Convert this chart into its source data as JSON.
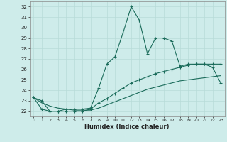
{
  "xlabel": "Humidex (Indice chaleur)",
  "background_color": "#ceecea",
  "grid_color": "#b8dbd8",
  "line_color": "#1a6b5a",
  "x": [
    0,
    1,
    2,
    3,
    4,
    5,
    6,
    7,
    8,
    9,
    10,
    11,
    12,
    13,
    14,
    15,
    16,
    17,
    18,
    19,
    20,
    21,
    22,
    23
  ],
  "y_main": [
    23.3,
    23.0,
    22.0,
    22.0,
    22.2,
    22.2,
    22.2,
    22.3,
    24.2,
    26.5,
    27.2,
    29.5,
    32.0,
    30.7,
    27.5,
    29.0,
    29.0,
    28.7,
    26.3,
    26.5,
    26.5,
    26.5,
    26.2,
    24.7
  ],
  "y_lower": [
    23.3,
    22.2,
    22.0,
    22.0,
    22.0,
    22.0,
    22.0,
    22.2,
    22.8,
    23.2,
    23.7,
    24.2,
    24.7,
    25.0,
    25.3,
    25.6,
    25.8,
    26.0,
    26.2,
    26.4,
    26.5,
    26.5,
    26.5,
    26.5
  ],
  "y_flat": [
    23.3,
    22.8,
    22.5,
    22.3,
    22.2,
    22.1,
    22.1,
    22.1,
    22.3,
    22.6,
    22.9,
    23.2,
    23.5,
    23.8,
    24.1,
    24.3,
    24.5,
    24.7,
    24.9,
    25.0,
    25.1,
    25.2,
    25.3,
    25.4
  ],
  "ylim": [
    21.5,
    32.5
  ],
  "xlim": [
    -0.5,
    23.5
  ],
  "yticks": [
    22,
    23,
    24,
    25,
    26,
    27,
    28,
    29,
    30,
    31,
    32
  ],
  "xticks": [
    0,
    1,
    2,
    3,
    4,
    5,
    6,
    7,
    8,
    9,
    10,
    11,
    12,
    13,
    14,
    15,
    16,
    17,
    18,
    19,
    20,
    21,
    22,
    23
  ]
}
